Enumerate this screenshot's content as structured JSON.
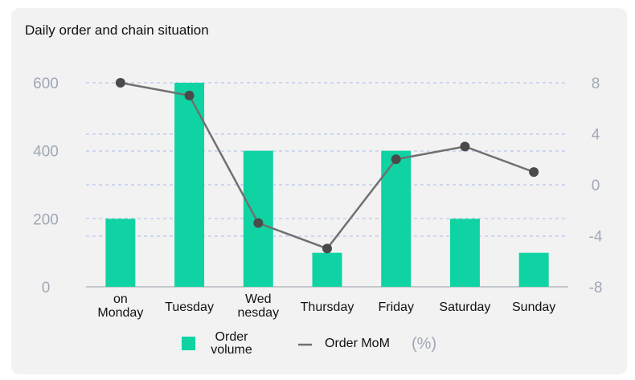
{
  "colors": {
    "bar": "#10d3a3",
    "line": "#707070",
    "point": "#4a4a4a",
    "axis_text": "#a0a8b6",
    "grid": "#aabbee"
  },
  "chart_data": {
    "type": "bar",
    "title": "Daily order and chain situation",
    "categories": [
      "on\nMonday",
      "Tuesday",
      "Wed\nnesday",
      "Thursday",
      "Friday",
      "Saturday",
      "Sunday"
    ],
    "series": [
      {
        "name": "Order\nvolume",
        "type": "bar",
        "axis": "left",
        "values": [
          200,
          600,
          400,
          100,
          400,
          200,
          100
        ]
      },
      {
        "name": "Order MoM",
        "type": "line",
        "axis": "right",
        "values": [
          8,
          7,
          -3,
          -5,
          2,
          3,
          1
        ]
      }
    ],
    "y_left": {
      "ylim": [
        0,
        600
      ],
      "ticks": [
        "0",
        "200",
        "400",
        "600"
      ]
    },
    "y_right": {
      "ylim": [
        -8,
        8
      ],
      "ticks": [
        "-8",
        "-4",
        "0",
        "4",
        "8"
      ]
    },
    "legend_unit": "(%)",
    "legend_position": "bottom",
    "grid": true
  }
}
